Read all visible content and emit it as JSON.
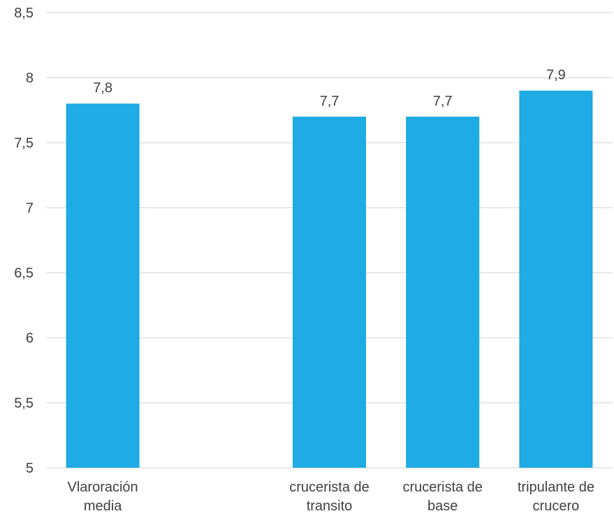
{
  "chart_data": {
    "type": "bar",
    "title": "",
    "xlabel": "",
    "ylabel": "",
    "ylim": [
      5,
      8.5
    ],
    "yticks": [
      "5",
      "5,5",
      "6",
      "6,5",
      "7",
      "7,5",
      "8",
      "8,5"
    ],
    "ytick_values": [
      5,
      5.5,
      6,
      6.5,
      7,
      7.5,
      8,
      8.5
    ],
    "grid": true,
    "legend": "none",
    "categories": [
      [
        "Vlaroración",
        "media"
      ],
      [
        "",
        ""
      ],
      [
        "crucerista de",
        "transito"
      ],
      [
        "crucerista de",
        "base"
      ],
      [
        "tripulante de",
        "crucero"
      ]
    ],
    "values": [
      7.8,
      null,
      7.7,
      7.7,
      7.9
    ],
    "data_labels": [
      "7,8",
      "",
      "7,7",
      "7,7",
      "7,9"
    ],
    "bar_color": "#1FABE3",
    "grid_color": "#D9D9D9"
  }
}
